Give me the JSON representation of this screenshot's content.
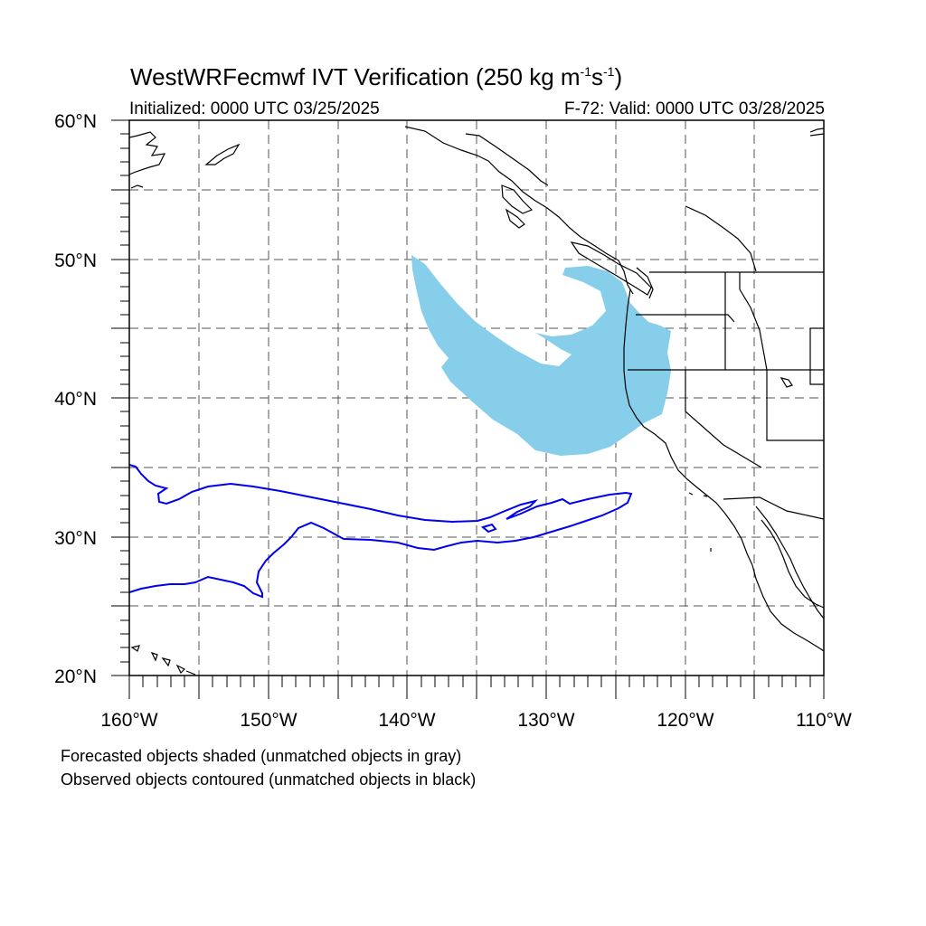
{
  "title": {
    "model": "WestWRFecmwf",
    "product": "IVT Verification",
    "threshold": "(250 kg m",
    "exp1": "-1",
    "unit_s": "s",
    "exp2": "-1",
    "close": ")"
  },
  "subtitle": {
    "initialized": "Initialized: 0000 UTC 03/25/2025",
    "valid": "F-72: Valid: 0000 UTC 03/28/2025"
  },
  "axes": {
    "lat_labels": [
      "60°N",
      "50°N",
      "40°N",
      "30°N",
      "20°N"
    ],
    "lon_labels": [
      "160°W",
      "150°W",
      "140°W",
      "130°W",
      "120°W",
      "110°W"
    ],
    "lat_range": [
      20,
      60
    ],
    "lon_range": [
      -160,
      -110
    ]
  },
  "legend_notes": {
    "forecast": "Forecasted objects shaded (unmatched objects in gray)",
    "observed": "Observed objects contoured (unmatched objects in black)"
  },
  "colors": {
    "forecast_fill": "#87ceeb",
    "observed_contour": "#0000ee",
    "coastline": "#000000",
    "grid": "#555555"
  }
}
